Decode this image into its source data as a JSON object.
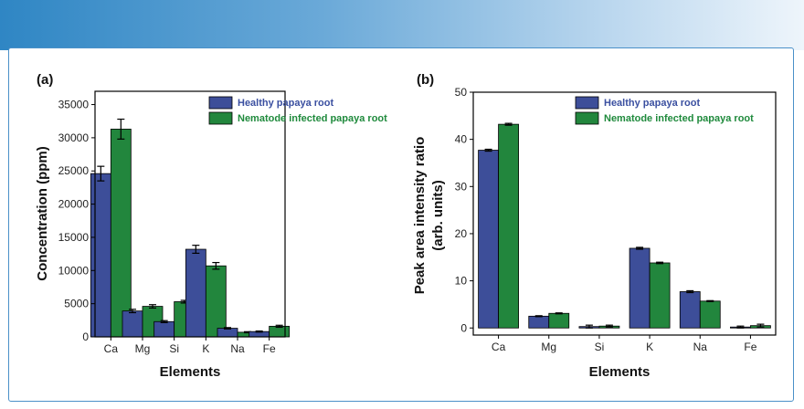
{
  "colors": {
    "healthy": "#3d4e99",
    "infected": "#22863d",
    "axis": "#000000"
  },
  "chart_data": [
    {
      "type": "bar",
      "panel_label": "(a)",
      "categories": [
        "Ca",
        "Mg",
        "Si",
        "K",
        "Na",
        "Fe"
      ],
      "xlabel": "Elements",
      "ylabel": "Concentration (ppm)",
      "ylim": [
        0,
        37000
      ],
      "yticks": [
        0,
        5000,
        10000,
        15000,
        20000,
        25000,
        30000,
        35000
      ],
      "yticks_labels": [
        "0",
        "5000",
        "10000",
        "15000",
        "20000",
        "25000",
        "30000",
        "35000"
      ],
      "legend_position": "top-right",
      "series": [
        {
          "name": "Healthy papaya root",
          "values": [
            24600,
            3900,
            2300,
            13200,
            1300,
            800
          ],
          "errors": [
            1100,
            250,
            150,
            600,
            100,
            80
          ]
        },
        {
          "name": "Nematode infected papaya root",
          "values": [
            31300,
            4600,
            5300,
            10700,
            700,
            1600
          ],
          "errors": [
            1500,
            250,
            200,
            500,
            80,
            150
          ]
        }
      ]
    },
    {
      "type": "bar",
      "panel_label": "(b)",
      "categories": [
        "Ca",
        "Mg",
        "Si",
        "K",
        "Na",
        "Fe"
      ],
      "xlabel": "Elements",
      "ylabel": [
        "Peak area intensity ratio",
        "(arb. units)"
      ],
      "ylim": [
        -1.5,
        50
      ],
      "yticks": [
        0,
        10,
        20,
        30,
        40,
        50
      ],
      "yticks_labels": [
        "0",
        "10",
        "20",
        "30",
        "40",
        "50"
      ],
      "legend_position": "top-right",
      "series": [
        {
          "name": "Healthy papaya root",
          "values": [
            37.7,
            2.5,
            0.3,
            16.9,
            7.7,
            0.2
          ],
          "errors": [
            0.2,
            0.1,
            0.3,
            0.2,
            0.2,
            0.2
          ]
        },
        {
          "name": "Nematode infected papaya root",
          "values": [
            43.2,
            3.1,
            0.4,
            13.8,
            5.7,
            0.5
          ],
          "errors": [
            0.2,
            0.1,
            0.2,
            0.15,
            0.1,
            0.3
          ]
        }
      ]
    }
  ]
}
